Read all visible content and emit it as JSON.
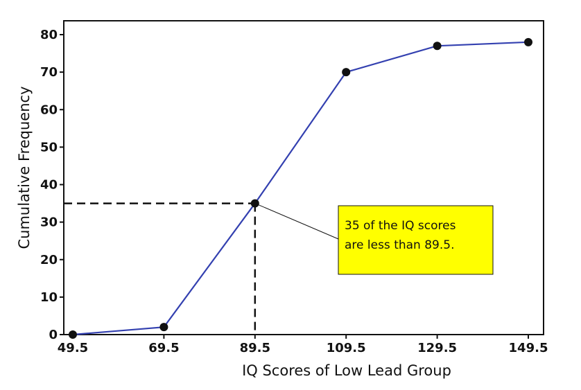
{
  "chart_data": {
    "type": "line",
    "title": "",
    "xlabel": "IQ Scores of Low Lead Group",
    "ylabel": "Cumulative Frequency",
    "x": [
      49.5,
      69.5,
      89.5,
      109.5,
      129.5,
      149.5
    ],
    "series": [
      {
        "values": [
          0,
          2,
          35,
          70,
          77,
          78
        ]
      }
    ],
    "xticks": [
      "49.5",
      "69.5",
      "89.5",
      "109.5",
      "129.5",
      "149.5"
    ],
    "yticks": [
      "0",
      "10",
      "20",
      "30",
      "40",
      "50",
      "60",
      "70",
      "80"
    ],
    "xlim": [
      49.5,
      149.5
    ],
    "ylim": [
      0,
      80
    ],
    "grid": false,
    "line_color": "#3340b0",
    "marker_color": "#111111",
    "highlight": {
      "x": 89.5,
      "y": 35
    },
    "annotation": {
      "lines": [
        "35 of the IQ scores",
        "are less than 89.5."
      ],
      "fill_color": "#ffff00"
    }
  }
}
